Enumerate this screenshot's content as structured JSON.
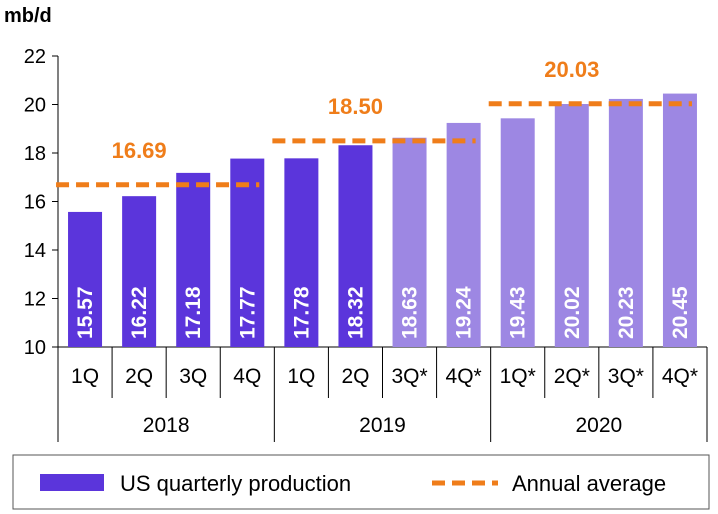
{
  "colors": {
    "actual": "#5b35db",
    "forecast": "#9d87e3",
    "average": "#ef7d1a",
    "axis": "#000000"
  },
  "chart_data": {
    "type": "bar",
    "unit_label": "mb/d",
    "ylim": [
      10,
      22
    ],
    "yticks": [
      10,
      12,
      14,
      16,
      18,
      20,
      22
    ],
    "grid": false,
    "categories": [
      "1Q",
      "2Q",
      "3Q",
      "4Q",
      "1Q",
      "2Q",
      "3Q*",
      "4Q*",
      "1Q*",
      "2Q*",
      "3Q*",
      "4Q*"
    ],
    "groups": [
      {
        "label": "2018",
        "start": 0,
        "end": 3
      },
      {
        "label": "2019",
        "start": 4,
        "end": 7
      },
      {
        "label": "2020",
        "start": 8,
        "end": 11
      }
    ],
    "series": [
      {
        "name": "US quarterly production",
        "type": "bar",
        "values": [
          15.57,
          16.22,
          17.18,
          17.77,
          17.78,
          18.32,
          18.63,
          19.24,
          19.43,
          20.02,
          20.23,
          20.45
        ],
        "labels": [
          "15.57",
          "16.22",
          "17.18",
          "17.77",
          "17.78",
          "18.32",
          "18.63",
          "19.24",
          "19.43",
          "20.02",
          "20.23",
          "20.45"
        ],
        "forecast": [
          false,
          false,
          false,
          false,
          false,
          false,
          true,
          true,
          true,
          true,
          true,
          true
        ]
      },
      {
        "name": "Annual average",
        "type": "line-dashed",
        "segments": [
          {
            "start": 0,
            "end": 3,
            "value": 16.69,
            "label": "16.69"
          },
          {
            "start": 4,
            "end": 7,
            "value": 18.5,
            "label": "18.50"
          },
          {
            "start": 8,
            "end": 11,
            "value": 20.03,
            "label": "20.03"
          }
        ]
      }
    ],
    "legend": {
      "position": "bottom",
      "items": [
        {
          "label": "US quarterly production",
          "symbol": "bar"
        },
        {
          "label": "Annual average",
          "symbol": "dash"
        }
      ]
    }
  }
}
